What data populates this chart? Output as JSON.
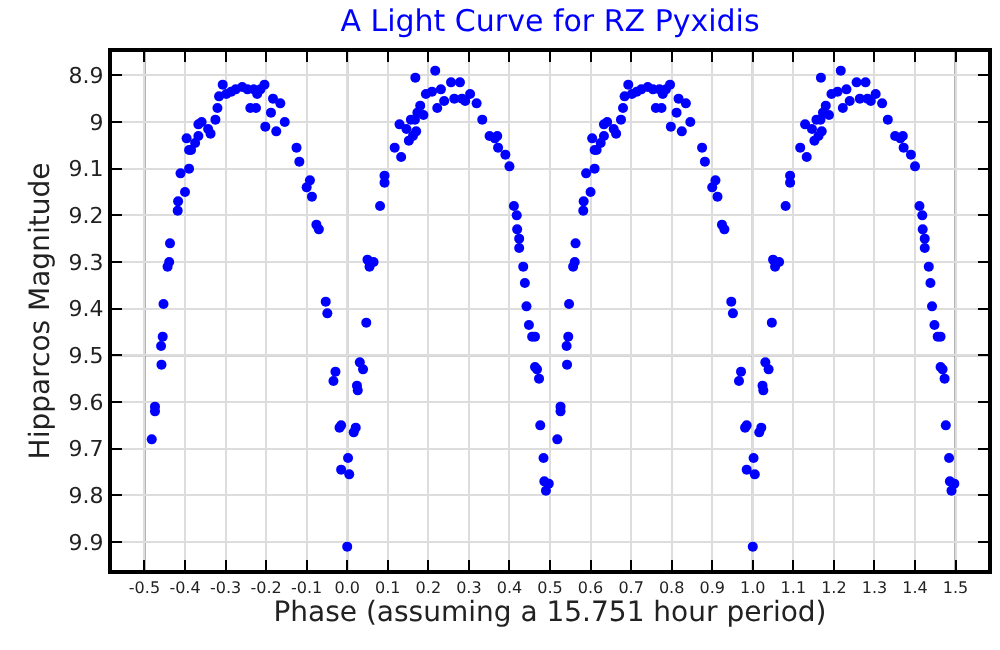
{
  "chart_data": {
    "type": "scatter",
    "title": "A Light Curve for RZ Pyxidis",
    "xlabel": "Phase (assuming a 15.751 hour period)",
    "ylabel": "Hipparcos Magnitude",
    "xlim": [
      -0.58,
      1.58
    ],
    "ylim": [
      9.96,
      8.85
    ],
    "xticks": [
      -0.5,
      {
        "value": -0.4,
        "label": "-0.4"
      },
      {
        "value": -0.3,
        "label": "-0.3"
      },
      {
        "value": -0.2,
        "label": "-0.2"
      },
      {
        "value": -0.1,
        "label": "-0.1"
      },
      {
        "value": 0,
        "label": "0.0"
      },
      0.1,
      0.2,
      0.3,
      0.4,
      0.5,
      0.6,
      0.7,
      0.8,
      0.9,
      {
        "value": 1,
        "label": "1.0"
      },
      1.1,
      1.2,
      1.3,
      1.4,
      1.5
    ],
    "yticks": [
      8.9,
      9,
      9.1,
      9.2,
      9.3,
      9.4,
      9.5,
      9.6,
      9.7,
      9.8,
      9.9
    ],
    "grid": true,
    "marker": "circle",
    "series": [
      {
        "color": "#0000ff",
        "x": [
          -0.482,
          -0.474,
          -0.474,
          -0.458,
          -0.459,
          -0.455,
          -0.453,
          -0.443,
          -0.439,
          -0.437,
          -0.417,
          -0.418,
          -0.411,
          -0.4,
          -0.39,
          -0.39,
          -0.396,
          -0.385,
          -0.375,
          -0.367,
          -0.367,
          -0.359,
          -0.343,
          -0.337,
          -0.325,
          -0.32,
          -0.316,
          -0.307,
          -0.298,
          -0.286,
          -0.275,
          -0.259,
          -0.246,
          -0.23,
          -0.239,
          -0.225,
          -0.222,
          -0.214,
          -0.204,
          -0.202,
          -0.188,
          -0.183,
          -0.175,
          -0.165,
          -0.154,
          -0.125,
          -0.118,
          -0.1,
          -0.092,
          -0.087,
          -0.076,
          -0.07,
          -0.053,
          -0.049,
          -0.034,
          -0.029,
          -0.019,
          -0.015,
          -0.015,
          0.002,
          0.005,
          0.0,
          0.031,
          0.039,
          0.024,
          0.026,
          0.021,
          0.016,
          0.047,
          0.05,
          0.065,
          0.055,
          0.081,
          0.092,
          0.092,
          0.117,
          0.133,
          0.129,
          0.146,
          0.152,
          0.157,
          0.162,
          0.167,
          0.17,
          0.173,
          0.18,
          0.168,
          0.188,
          0.194,
          0.209,
          0.217,
          0.222,
          0.231,
          0.239,
          0.256,
          0.264,
          0.278,
          0.283,
          0.291,
          0.303,
          0.319,
          0.333,
          0.351,
          0.364,
          0.372,
          0.37,
          0.39,
          0.4,
          0.411,
          0.418,
          0.419,
          0.424,
          0.424,
          0.434,
          0.438,
          0.442,
          0.448,
          0.456,
          0.463,
          0.463,
          0.468,
          0.473,
          0.476,
          0.484,
          0.486,
          0.497,
          0.49,
          0.518,
          0.526,
          0.526,
          0.542,
          0.541,
          0.545,
          0.547,
          0.557,
          0.561,
          0.563,
          0.583,
          0.582,
          0.589,
          0.6,
          0.61,
          0.61,
          0.604,
          0.615,
          0.625,
          0.633,
          0.633,
          0.641,
          0.657,
          0.663,
          0.675,
          0.68,
          0.684,
          0.693,
          0.702,
          0.714,
          0.725,
          0.741,
          0.754,
          0.77,
          0.761,
          0.775,
          0.778,
          0.786,
          0.796,
          0.798,
          0.812,
          0.817,
          0.825,
          0.835,
          0.846,
          0.875,
          0.882,
          0.9,
          0.908,
          0.913,
          0.924,
          0.93,
          0.947,
          0.951,
          0.966,
          0.971,
          0.981,
          0.985,
          0.985,
          1.002,
          1.005,
          1.0,
          1.031,
          1.039,
          1.024,
          1.026,
          1.021,
          1.016,
          1.047,
          1.05,
          1.065,
          1.055,
          1.081,
          1.092,
          1.092,
          1.117,
          1.133,
          1.129,
          1.146,
          1.152,
          1.157,
          1.162,
          1.167,
          1.17,
          1.173,
          1.18,
          1.168,
          1.188,
          1.194,
          1.209,
          1.217,
          1.222,
          1.231,
          1.239,
          1.256,
          1.264,
          1.278,
          1.283,
          1.291,
          1.303,
          1.319,
          1.333,
          1.351,
          1.364,
          1.372,
          1.37,
          1.39,
          1.4,
          1.411,
          1.418,
          1.419,
          1.424,
          1.424,
          1.434,
          1.438,
          1.442,
          1.448,
          1.456,
          1.463,
          1.463,
          1.468,
          1.473,
          1.476,
          1.484,
          1.486,
          1.497,
          1.49
        ],
        "values": [
          9.68,
          9.61,
          9.62,
          9.52,
          9.48,
          9.46,
          9.39,
          9.31,
          9.3,
          9.26,
          9.17,
          9.19,
          9.11,
          9.15,
          9.1,
          9.06,
          9.035,
          9.06,
          9.045,
          9.03,
          9.005,
          9.0,
          9.015,
          9.025,
          8.995,
          8.97,
          8.945,
          8.92,
          8.94,
          8.935,
          8.93,
          8.925,
          8.93,
          8.93,
          8.97,
          8.97,
          8.94,
          8.93,
          8.92,
          9.01,
          8.98,
          8.95,
          9.02,
          8.96,
          9.0,
          9.055,
          9.085,
          9.14,
          9.125,
          9.16,
          9.22,
          9.23,
          9.385,
          9.41,
          9.555,
          9.535,
          9.655,
          9.65,
          9.745,
          9.72,
          9.755,
          9.91,
          9.515,
          9.53,
          9.565,
          9.575,
          9.655,
          9.665,
          9.43,
          9.295,
          9.3,
          9.31,
          9.18,
          9.13,
          9.115,
          9.055,
          9.075,
          9.005,
          9.015,
          9.04,
          8.995,
          9.03,
          8.995,
          9.02,
          8.98,
          8.965,
          8.905,
          8.985,
          8.94,
          8.935,
          8.89,
          8.97,
          8.93,
          8.955,
          8.915,
          8.95,
          8.915,
          8.95,
          8.955,
          8.94,
          8.96,
          8.995,
          9.03,
          9.035,
          9.055,
          9.03,
          9.07,
          9.095,
          9.18,
          9.2,
          9.23,
          9.25,
          9.27,
          9.31,
          9.345,
          9.395,
          9.435,
          9.46,
          9.46,
          9.525,
          9.53,
          9.55,
          9.65,
          9.72,
          9.77,
          9.775,
          9.79,
          9.68,
          9.61,
          9.62,
          9.52,
          9.48,
          9.46,
          9.39,
          9.31,
          9.3,
          9.26,
          9.17,
          9.19,
          9.11,
          9.15,
          9.1,
          9.06,
          9.035,
          9.06,
          9.045,
          9.03,
          9.005,
          9.0,
          9.015,
          9.025,
          8.995,
          8.97,
          8.945,
          8.92,
          8.94,
          8.935,
          8.93,
          8.925,
          8.93,
          8.93,
          8.97,
          8.97,
          8.94,
          8.93,
          8.92,
          9.01,
          8.98,
          8.95,
          9.02,
          8.96,
          9.0,
          9.055,
          9.085,
          9.14,
          9.125,
          9.16,
          9.22,
          9.23,
          9.385,
          9.41,
          9.555,
          9.535,
          9.655,
          9.65,
          9.745,
          9.72,
          9.755,
          9.91,
          9.515,
          9.53,
          9.565,
          9.575,
          9.655,
          9.665,
          9.43,
          9.295,
          9.3,
          9.31,
          9.18,
          9.13,
          9.115,
          9.055,
          9.075,
          9.005,
          9.015,
          9.04,
          8.995,
          9.03,
          8.995,
          9.02,
          8.98,
          8.965,
          8.905,
          8.985,
          8.94,
          8.935,
          8.89,
          8.97,
          8.93,
          8.955,
          8.915,
          8.95,
          8.915,
          8.95,
          8.955,
          8.94,
          8.96,
          8.995,
          9.03,
          9.035,
          9.055,
          9.03,
          9.07,
          9.095,
          9.18,
          9.2,
          9.23,
          9.25,
          9.27,
          9.31,
          9.345,
          9.395,
          9.435,
          9.46,
          9.46,
          9.525,
          9.53,
          9.55,
          9.65,
          9.72,
          9.77,
          9.775,
          9.79
        ]
      }
    ]
  }
}
